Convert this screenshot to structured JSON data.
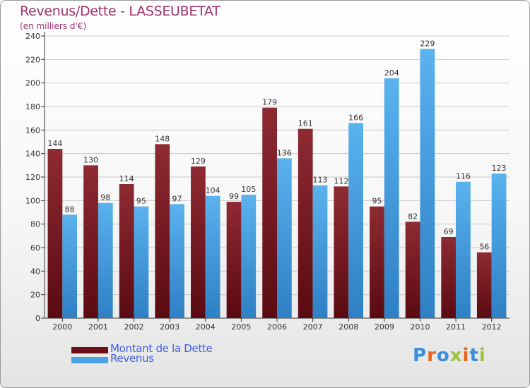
{
  "title": "Revenus/Dette - LASSEUBETAT",
  "subtitle": "(en milliers d'€)",
  "colors": {
    "dette": "#7a1c24",
    "revenus": "#4aa3e6",
    "title": "#a0306c",
    "legend_text": "#4060e0"
  },
  "legend": [
    {
      "label": "Montant de la Dette",
      "color": "#6b0f18"
    },
    {
      "label": "Revenus",
      "color": "#4aa3e6"
    }
  ],
  "logo": {
    "text": "Proxiti",
    "colors": [
      "#3a8fd8",
      "#e8631c",
      "#3a8fd8",
      "#9bc53d",
      "#e8631c",
      "#3a8fd8",
      "#9bc53d"
    ]
  },
  "chart_data": {
    "type": "bar",
    "title": "Revenus/Dette - LASSEUBETAT",
    "subtitle": "(en milliers d'€)",
    "xlabel": "",
    "ylabel": "",
    "ylim": [
      0,
      240
    ],
    "yticks": [
      0,
      20,
      40,
      60,
      80,
      100,
      120,
      140,
      160,
      180,
      200,
      220,
      240
    ],
    "grid": true,
    "legend_position": "bottom-left",
    "categories": [
      "2000",
      "2001",
      "2002",
      "2003",
      "2004",
      "2005",
      "2006",
      "2007",
      "2008",
      "2009",
      "2010",
      "2011",
      "2012"
    ],
    "series": [
      {
        "name": "Montant de la Dette",
        "values": [
          144,
          130,
          114,
          148,
          129,
          99,
          179,
          161,
          112,
          95,
          82,
          69,
          56
        ]
      },
      {
        "name": "Revenus",
        "values": [
          88,
          98,
          95,
          97,
          104,
          105,
          136,
          113,
          166,
          204,
          229,
          116,
          123
        ]
      }
    ]
  }
}
